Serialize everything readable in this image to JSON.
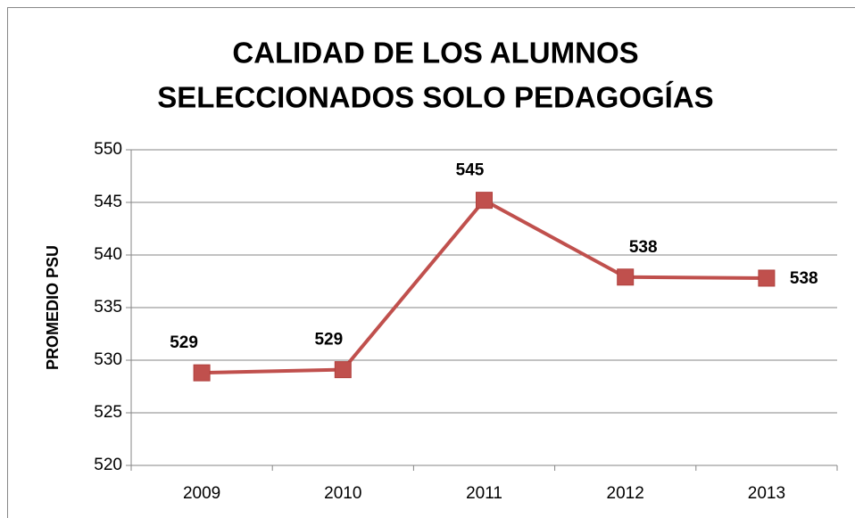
{
  "chart_data": {
    "type": "line",
    "title": [
      "CALIDAD DE LOS ALUMNOS",
      "SELECCIONADOS SOLO PEDAGOGÍAS"
    ],
    "y_label": "PROMEDIO PSU",
    "categories": [
      "2009",
      "2010",
      "2011",
      "2012",
      "2013"
    ],
    "series": [
      {
        "name": "PROMEDIO PSU",
        "color": "#c0504d",
        "values": [
          528.8,
          529.1,
          545.2,
          537.9,
          537.8
        ],
        "value_labels": [
          "529",
          "529",
          "545",
          "538",
          "538"
        ]
      }
    ],
    "ylim": [
      520,
      550
    ],
    "yticks": [
      520,
      525,
      530,
      535,
      540,
      545,
      550
    ],
    "grid": true,
    "legend": false
  }
}
